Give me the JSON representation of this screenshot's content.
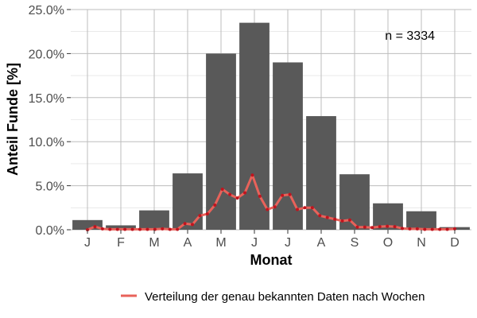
{
  "chart_data": {
    "type": "bar",
    "xlabel": "Monat",
    "ylabel": "Anteil Funde [%]",
    "categories": [
      "J",
      "F",
      "M",
      "A",
      "M",
      "J",
      "J",
      "A",
      "S",
      "O",
      "N",
      "D"
    ],
    "values": [
      1.1,
      0.5,
      2.2,
      6.4,
      20.0,
      23.5,
      19.0,
      12.9,
      6.3,
      3.0,
      2.1,
      0.3
    ],
    "ylim": [
      0,
      25
    ],
    "yticks": [
      0,
      5,
      10,
      15,
      20,
      25
    ],
    "ytick_labels": [
      "0.0%",
      "5.0%",
      "10.0%",
      "15.0%",
      "20.0%",
      "25.0%"
    ],
    "grid": true,
    "annotation": "n = 3334",
    "colors": {
      "bar": "#595959",
      "line": "#e8625a",
      "points": "#c0141e",
      "grid": "#bdbdbd"
    },
    "line_series": {
      "name": "Verteilung der genau bekannten Daten nach Wochen",
      "type": "line",
      "values": [
        0.0,
        0.35,
        0.1,
        0.05,
        0.05,
        0.05,
        0.05,
        0.05,
        0.05,
        0.05,
        0.1,
        0.05,
        0.05,
        0.7,
        0.6,
        1.6,
        1.8,
        2.8,
        4.6,
        4.0,
        3.6,
        4.2,
        6.2,
        3.8,
        2.3,
        2.6,
        3.9,
        4.0,
        2.3,
        2.5,
        2.5,
        1.6,
        1.4,
        1.2,
        1.0,
        1.1,
        0.3,
        0.3,
        0.25,
        0.35,
        0.4,
        0.35,
        0.15,
        0.1,
        0.1,
        0.05,
        0.05,
        0.05,
        0.05,
        0.1
      ],
      "x_range_months": [
        1,
        12
      ]
    },
    "legend": {
      "position": "bottom",
      "entries": [
        "Verteilung der genau bekannten Daten nach Wochen"
      ]
    }
  }
}
